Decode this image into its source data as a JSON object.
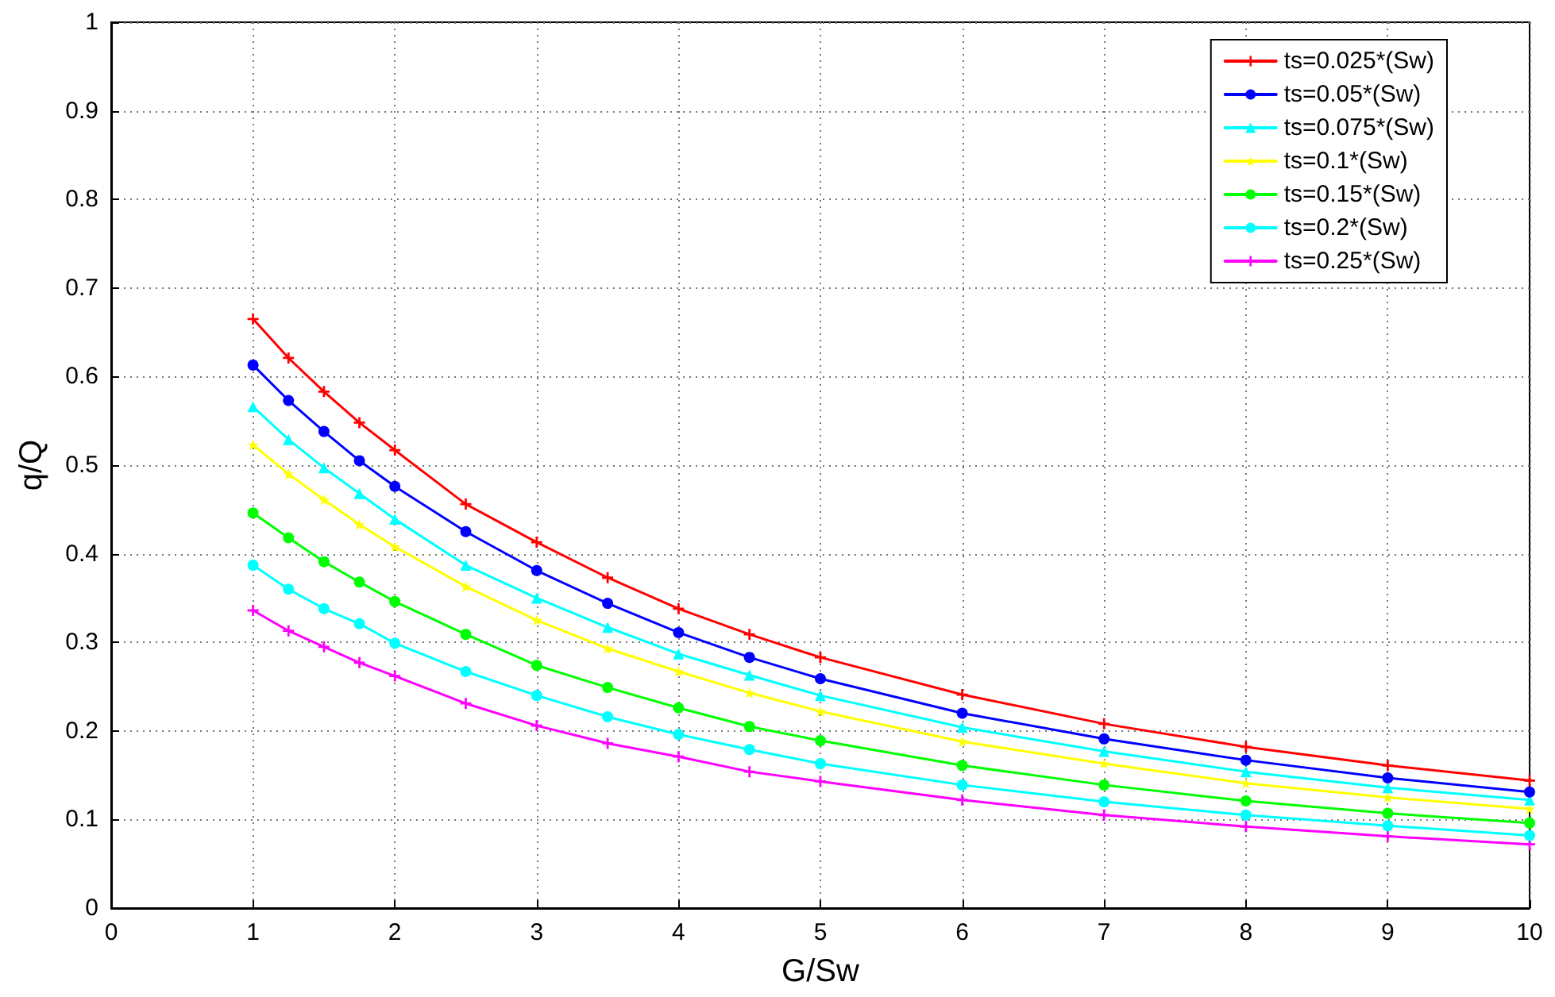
{
  "chart_data": {
    "type": "line",
    "xlabel": "G/Sw",
    "ylabel": "q/Q",
    "x": [
      1,
      1.25,
      1.5,
      1.75,
      2,
      2.5,
      3,
      3.5,
      4,
      4.5,
      5,
      6,
      7,
      8,
      9,
      10
    ],
    "series": [
      {
        "name": "ts=0.025*(Sw)",
        "color": "#ff0000",
        "marker": "cross",
        "values": [
          0.665,
          0.621,
          0.583,
          0.548,
          0.517,
          0.456,
          0.413,
          0.373,
          0.338,
          0.309,
          0.283,
          0.241,
          0.208,
          0.182,
          0.161,
          0.144
        ]
      },
      {
        "name": "ts=0.05*(Sw)",
        "color": "#0000ff",
        "marker": "circle",
        "values": [
          0.613,
          0.573,
          0.538,
          0.505,
          0.476,
          0.425,
          0.381,
          0.344,
          0.311,
          0.283,
          0.259,
          0.22,
          0.191,
          0.167,
          0.147,
          0.131
        ]
      },
      {
        "name": "ts=0.075*(Sw)",
        "color": "#00ffff",
        "marker": "triangle",
        "values": [
          0.566,
          0.529,
          0.497,
          0.468,
          0.439,
          0.387,
          0.35,
          0.317,
          0.287,
          0.263,
          0.24,
          0.204,
          0.177,
          0.154,
          0.136,
          0.122
        ]
      },
      {
        "name": "ts=0.1*(Sw)",
        "color": "#ffff00",
        "marker": "star",
        "values": [
          0.523,
          0.49,
          0.461,
          0.433,
          0.408,
          0.363,
          0.325,
          0.293,
          0.267,
          0.243,
          0.222,
          0.188,
          0.163,
          0.141,
          0.125,
          0.112
        ]
      },
      {
        "name": "ts=0.15*(Sw)",
        "color": "#00ff00",
        "marker": "circle",
        "values": [
          0.446,
          0.418,
          0.391,
          0.368,
          0.346,
          0.309,
          0.274,
          0.249,
          0.226,
          0.205,
          0.189,
          0.161,
          0.139,
          0.121,
          0.107,
          0.096
        ]
      },
      {
        "name": "ts=0.2*(Sw)",
        "color": "#00ffff",
        "marker": "circle",
        "values": [
          0.387,
          0.36,
          0.338,
          0.321,
          0.299,
          0.267,
          0.24,
          0.216,
          0.196,
          0.179,
          0.163,
          0.139,
          0.12,
          0.105,
          0.093,
          0.082
        ]
      },
      {
        "name": "ts=0.25*(Sw)",
        "color": "#ff00ff",
        "marker": "cross",
        "values": [
          0.336,
          0.313,
          0.295,
          0.277,
          0.262,
          0.231,
          0.206,
          0.186,
          0.171,
          0.154,
          0.143,
          0.122,
          0.105,
          0.092,
          0.081,
          0.072
        ]
      }
    ],
    "xlim": [
      0,
      10
    ],
    "xticks": [
      0,
      1,
      2,
      3,
      4,
      5,
      6,
      7,
      8,
      9,
      10
    ],
    "ylim": [
      0,
      1
    ],
    "yticks": [
      0,
      0.1,
      0.2,
      0.3,
      0.4,
      0.5,
      0.6,
      0.7,
      0.8,
      0.9,
      1
    ],
    "grid": true,
    "legend": "top right",
    "line_style": "solid"
  }
}
